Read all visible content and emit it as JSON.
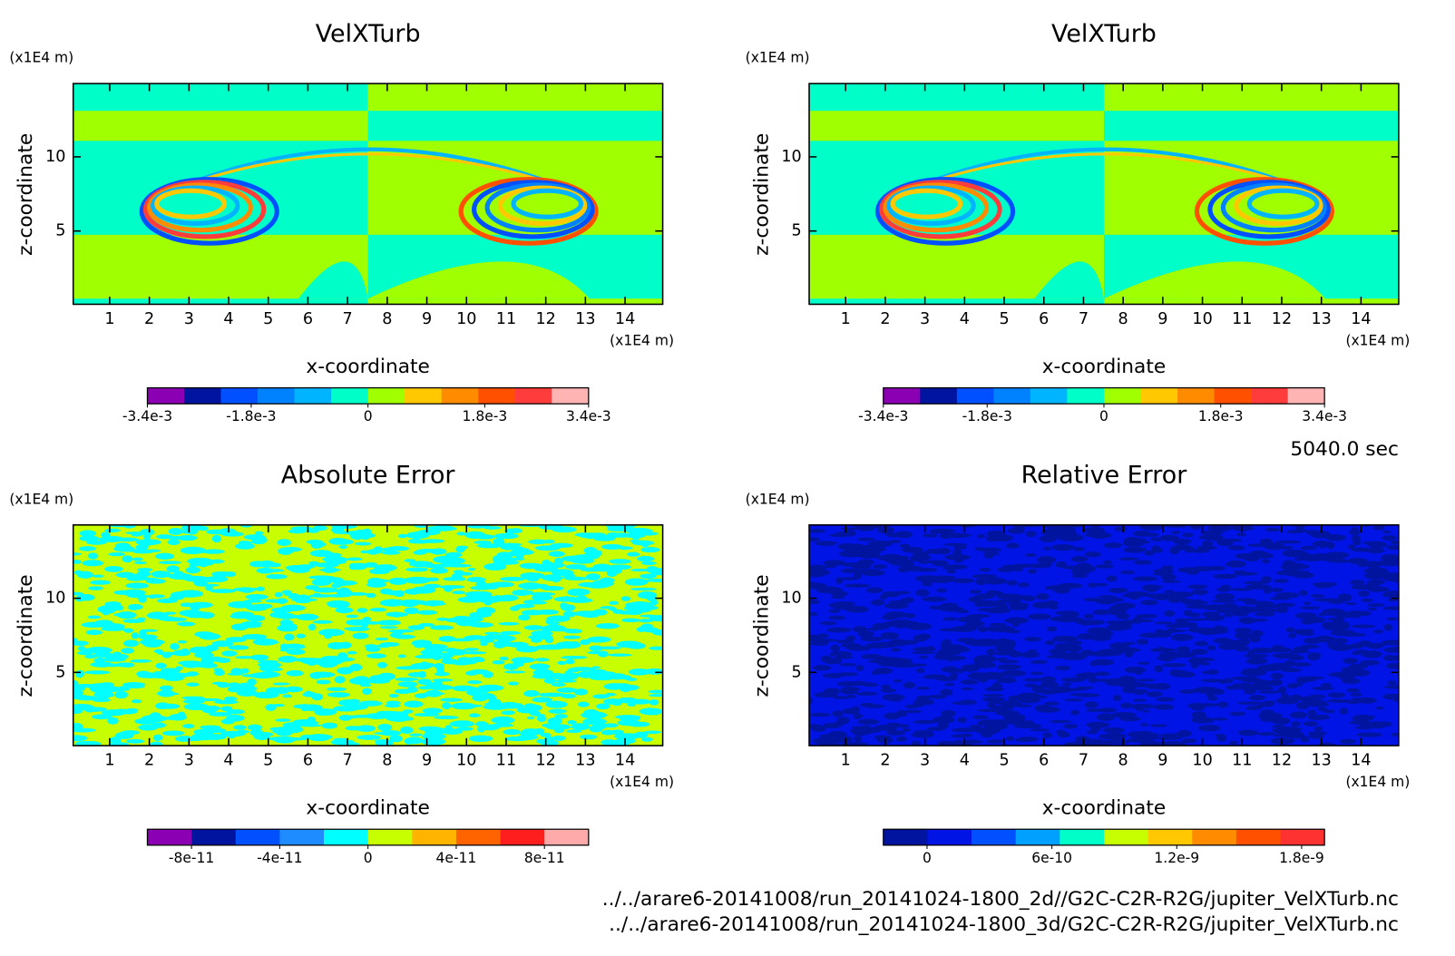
{
  "chart_data": [
    {
      "type": "contour",
      "title": "VelXTurb",
      "xlabel": "x-coordinate",
      "ylabel": "z-coordinate",
      "x_unit": "(x1E4 m)",
      "y_unit": "(x1E4 m)",
      "xlim": [
        0.08,
        14.95
      ],
      "ylim": [
        0.06,
        14.94
      ],
      "xticks": [
        1,
        2,
        3,
        4,
        5,
        6,
        7,
        8,
        9,
        10,
        11,
        12,
        13,
        14
      ],
      "yticks": [
        5,
        10
      ],
      "colors": [
        "#8c00b4",
        "#0014a0",
        "#0050ff",
        "#0082ff",
        "#00b4ff",
        "#00ffc8",
        "#a0ff00",
        "#ffc800",
        "#ff8c00",
        "#ff5000",
        "#ff3c3c",
        "#ffb4b4"
      ],
      "clim": [
        -0.0034,
        0.0034
      ],
      "cticks": [
        {
          "value": -0.0034,
          "label": "-3.4e-3"
        },
        {
          "value": -0.0018,
          "label": "-1.8e-3"
        },
        0,
        {
          "value": 0.0018,
          "label": "1.8e-3"
        },
        {
          "value": 0.0034,
          "label": "3.4e-3"
        }
      ]
    },
    {
      "type": "contour",
      "title": "VelXTurb",
      "xlabel": "x-coordinate",
      "ylabel": "z-coordinate",
      "x_unit": "(x1E4 m)",
      "y_unit": "(x1E4 m)",
      "xlim": [
        0.08,
        14.95
      ],
      "ylim": [
        0.06,
        14.94
      ],
      "xticks": [
        1,
        2,
        3,
        4,
        5,
        6,
        7,
        8,
        9,
        10,
        11,
        12,
        13,
        14
      ],
      "yticks": [
        5,
        10
      ],
      "colors": [
        "#8c00b4",
        "#0014a0",
        "#0050ff",
        "#0082ff",
        "#00b4ff",
        "#00ffc8",
        "#a0ff00",
        "#ffc800",
        "#ff8c00",
        "#ff5000",
        "#ff3c3c",
        "#ffb4b4"
      ],
      "clim": [
        -0.0034,
        0.0034
      ],
      "cticks": [
        {
          "value": -0.0034,
          "label": "-3.4e-3"
        },
        {
          "value": -0.0018,
          "label": "-1.8e-3"
        },
        0,
        {
          "value": 0.0018,
          "label": "1.8e-3"
        },
        {
          "value": 0.0034,
          "label": "3.4e-3"
        }
      ]
    },
    {
      "type": "contour",
      "title": "Absolute Error",
      "xlabel": "x-coordinate",
      "ylabel": "z-coordinate",
      "x_unit": "(x1E4 m)",
      "y_unit": "(x1E4 m)",
      "xlim": [
        0.08,
        14.95
      ],
      "ylim": [
        0.06,
        14.94
      ],
      "xticks": [
        1,
        2,
        3,
        4,
        5,
        6,
        7,
        8,
        9,
        10,
        11,
        12,
        13,
        14
      ],
      "yticks": [
        5,
        10
      ],
      "colors": [
        "#8c00b4",
        "#0014a0",
        "#0050ff",
        "#1e8cff",
        "#00ffff",
        "#c8ff00",
        "#ffb400",
        "#ff6400",
        "#ff1e1e",
        "#ffaaaa"
      ],
      "clim": [
        -1e-10,
        1e-10
      ],
      "cticks": [
        {
          "value": -8e-11,
          "label": "-8e-11"
        },
        {
          "value": -4e-11,
          "label": "-4e-11"
        },
        0,
        {
          "value": 4e-11,
          "label": "4e-11"
        },
        {
          "value": 8e-11,
          "label": "8e-11"
        }
      ]
    },
    {
      "type": "contour",
      "title": "Relative Error",
      "xlabel": "x-coordinate",
      "ylabel": "z-coordinate",
      "x_unit": "(x1E4 m)",
      "y_unit": "(x1E4 m)",
      "xlim": [
        0.08,
        14.95
      ],
      "ylim": [
        0.06,
        14.94
      ],
      "xticks": [
        1,
        2,
        3,
        4,
        5,
        6,
        7,
        8,
        9,
        10,
        11,
        12,
        13,
        14
      ],
      "yticks": [
        5,
        10
      ],
      "colors": [
        "#0014a0",
        "#0014e6",
        "#0050ff",
        "#00a0ff",
        "#00ffc8",
        "#c8ff00",
        "#ffc800",
        "#ff8c00",
        "#ff5000",
        "#ff3232"
      ],
      "clim": [
        -2.1e-10,
        1.91e-09
      ],
      "cticks": [
        0,
        {
          "value": 6e-10,
          "label": "6e-10"
        },
        {
          "value": 1.2e-09,
          "label": "1.2e-9"
        },
        {
          "value": 1.8e-09,
          "label": "1.8e-9"
        }
      ]
    }
  ],
  "time_label": "5040.0 sec",
  "files": [
    "../../arare6-20141008/run_20141024-1800_2d//G2C-C2R-R2G/jupiter_VelXTurb.nc",
    "../../arare6-20141008/run_20141024-1800_3d/G2C-C2R-R2G/jupiter_VelXTurb.nc"
  ]
}
